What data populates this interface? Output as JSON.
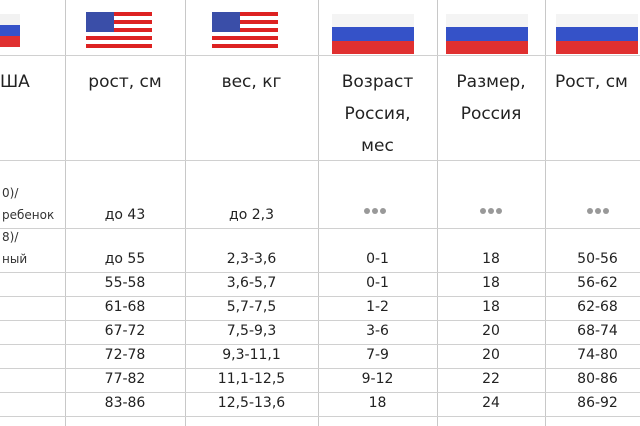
{
  "table": {
    "headers": [
      [
        "ША"
      ],
      [
        "рост, см"
      ],
      [
        "вес, кг"
      ],
      [
        "Возраст",
        "Россия,",
        "мес"
      ],
      [
        "Размер,",
        "Россия"
      ],
      [
        "Рост, см"
      ]
    ],
    "rows": [
      {
        "label": [
          "0)/",
          "ребенок"
        ],
        "cells": [
          "до 43",
          "до 2,3"
        ]
      },
      {
        "label": [
          "8)/",
          "ный"
        ],
        "cells": [
          "до 55",
          "2,3-3,6",
          "0-1",
          "18",
          "50-56"
        ]
      },
      {
        "cells": [
          "55-58",
          "3,6-5,7",
          "0-1",
          "18",
          "56-62"
        ]
      },
      {
        "cells": [
          "61-68",
          "5,7-7,5",
          "1-2",
          "18",
          "62-68"
        ]
      },
      {
        "cells": [
          "67-72",
          "7,5-9,3",
          "3-6",
          "20",
          "68-74"
        ]
      },
      {
        "cells": [
          "72-78",
          "9,3-11,1",
          "7-9",
          "20",
          "74-80"
        ]
      },
      {
        "cells": [
          "77-82",
          "11,1-12,5",
          "9-12",
          "22",
          "80-86"
        ]
      },
      {
        "cells": [
          "83-86",
          "12,5-13,6",
          "18",
          "24",
          "86-92"
        ]
      }
    ]
  }
}
